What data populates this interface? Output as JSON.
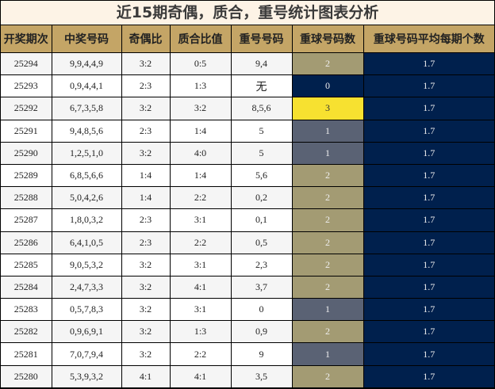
{
  "title": "近15期奇偶，质合，重号统计图表分析",
  "headers": [
    "开奖期次",
    "中奖号码",
    "奇偶比",
    "质合比值",
    "重号号码",
    "重球号码数",
    "重球号码平均每期个数"
  ],
  "colors": {
    "header": "#c4a566",
    "title_bg": "#fdf3e6",
    "count_0": "#00204d",
    "count_1": "#5a6274",
    "count_2": "#a39b73",
    "count_3": "#f7e130",
    "average": "#00204d"
  },
  "rows": [
    {
      "period": "25294",
      "numbers": "9,9,4,4,9",
      "odd_even": "3:2",
      "prime_composite": "0:5",
      "repeat": "9,4",
      "repeat_count": "2",
      "avg": "1.7"
    },
    {
      "period": "25293",
      "numbers": "0,9,4,4,1",
      "odd_even": "2:3",
      "prime_composite": "1:3",
      "repeat": "无",
      "repeat_count": "0",
      "avg": "1.7"
    },
    {
      "period": "25292",
      "numbers": "6,7,3,5,8",
      "odd_even": "3:2",
      "prime_composite": "3:2",
      "repeat": "8,5,6",
      "repeat_count": "3",
      "avg": "1.7"
    },
    {
      "period": "25291",
      "numbers": "9,4,8,5,6",
      "odd_even": "2:3",
      "prime_composite": "1:4",
      "repeat": "5",
      "repeat_count": "1",
      "avg": "1.7"
    },
    {
      "period": "25290",
      "numbers": "1,2,5,1,0",
      "odd_even": "3:2",
      "prime_composite": "4:0",
      "repeat": "5",
      "repeat_count": "1",
      "avg": "1.7"
    },
    {
      "period": "25289",
      "numbers": "6,8,5,6,6",
      "odd_even": "1:4",
      "prime_composite": "1:4",
      "repeat": "5,6",
      "repeat_count": "2",
      "avg": "1.7"
    },
    {
      "period": "25288",
      "numbers": "5,0,4,2,6",
      "odd_even": "1:4",
      "prime_composite": "2:2",
      "repeat": "0,2",
      "repeat_count": "2",
      "avg": "1.7"
    },
    {
      "period": "25287",
      "numbers": "1,8,0,3,2",
      "odd_even": "2:3",
      "prime_composite": "3:1",
      "repeat": "0,1",
      "repeat_count": "2",
      "avg": "1.7"
    },
    {
      "period": "25286",
      "numbers": "6,4,1,0,5",
      "odd_even": "2:3",
      "prime_composite": "2:2",
      "repeat": "0,5",
      "repeat_count": "2",
      "avg": "1.7"
    },
    {
      "period": "25285",
      "numbers": "9,0,5,3,2",
      "odd_even": "3:2",
      "prime_composite": "3:1",
      "repeat": "2,3",
      "repeat_count": "2",
      "avg": "1.7"
    },
    {
      "period": "25284",
      "numbers": "2,4,7,3,3",
      "odd_even": "3:2",
      "prime_composite": "4:1",
      "repeat": "3,7",
      "repeat_count": "2",
      "avg": "1.7"
    },
    {
      "period": "25283",
      "numbers": "0,5,7,8,3",
      "odd_even": "3:2",
      "prime_composite": "3:1",
      "repeat": "0",
      "repeat_count": "1",
      "avg": "1.7"
    },
    {
      "period": "25282",
      "numbers": "0,9,6,9,1",
      "odd_even": "3:2",
      "prime_composite": "1:3",
      "repeat": "0,9",
      "repeat_count": "2",
      "avg": "1.7"
    },
    {
      "period": "25281",
      "numbers": "7,0,7,9,4",
      "odd_even": "3:2",
      "prime_composite": "2:2",
      "repeat": "9",
      "repeat_count": "1",
      "avg": "1.7"
    },
    {
      "period": "25280",
      "numbers": "5,3,9,3,2",
      "odd_even": "4:1",
      "prime_composite": "4:1",
      "repeat": "3,5",
      "repeat_count": "2",
      "avg": "1.7"
    }
  ]
}
